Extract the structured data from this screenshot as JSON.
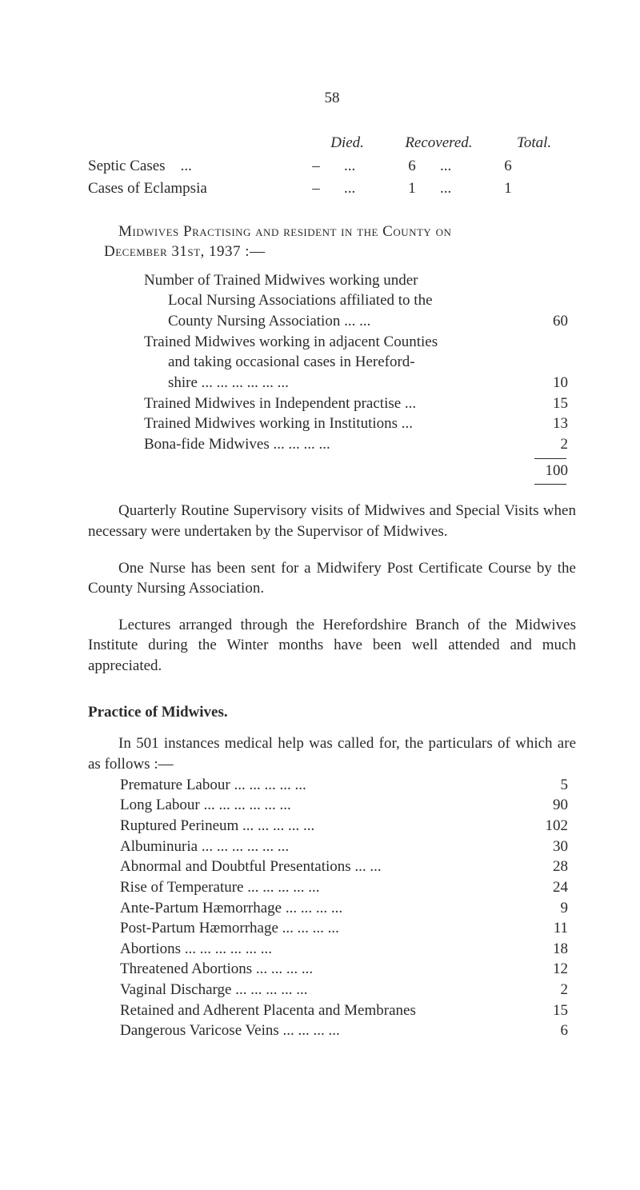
{
  "page_number": "58",
  "top_table": {
    "headers": {
      "died": "Died.",
      "recovered": "Recovered.",
      "total": "Total."
    },
    "rows": [
      {
        "label": "Septic Cases",
        "dots_a": "...",
        "died": "–",
        "dots_b": "...",
        "recovered": "6",
        "dots_c": "...",
        "total": "6"
      },
      {
        "label": "Cases of Eclampsia",
        "dots_a": "",
        "died": "–",
        "dots_b": "...",
        "recovered": "1",
        "dots_c": "...",
        "total": "1"
      }
    ]
  },
  "section1": {
    "heading_a": "Midwives Practising and resident in the County on",
    "heading_b": "December 31st, 1937 :—",
    "items": [
      {
        "lines": [
          "Number of Trained Midwives working under",
          "Local Nursing Associations affiliated to the",
          "County Nursing Association      ...   ..."
        ],
        "value": "60"
      },
      {
        "lines": [
          "Trained Midwives working in adjacent Counties",
          "and taking occasional cases in Hereford-",
          "shire ...     ...     ...     ...     ...     ..."
        ],
        "value": "10"
      },
      {
        "lines": [
          "Trained Midwives in Independent practise ..."
        ],
        "value": "15"
      },
      {
        "lines": [
          "Trained Midwives working in Institutions ..."
        ],
        "value": "13"
      },
      {
        "lines": [
          "Bona-fide Midwives       ...     ...     ...     ..."
        ],
        "value": "2"
      }
    ],
    "total": "100"
  },
  "para1": "Quarterly Routine Supervisory visits of Midwives and Special Visits when necessary were undertaken by the Supervisor of Midwives.",
  "para2": "One Nurse has been sent for a Midwifery Post Certificate Course by the County Nursing Association.",
  "para3": "Lectures arranged through the Herefordshire Branch of the Midwives Institute during the Winter months have been well attended and much appreciated.",
  "practice": {
    "heading": "Practice of Midwives.",
    "intro": "In 501 instances medical help was called for, the particulars of which are as follows :—",
    "items": [
      {
        "label": "Premature Labour   ...    ...    ...    ...    ...",
        "value": "5"
      },
      {
        "label": "Long Labour ...     ...     ...     ...     ...     ...",
        "value": "90"
      },
      {
        "label": "Ruptured Perineum ...    ...    ...    ...    ...",
        "value": "102"
      },
      {
        "label": "Albuminuria    ...    ...    ...    ...    ...    ...",
        "value": "30"
      },
      {
        "label": "Abnormal and Doubtful Presentations    ...    ...",
        "value": "28"
      },
      {
        "label": "Rise of Temperature ...    ...    ...    ...    ...",
        "value": "24"
      },
      {
        "label": "Ante-Partum Hæmorrhage ...    ...    ...    ...",
        "value": "9"
      },
      {
        "label": "Post-Partum Hæmorrhage  ...    ...    ...    ...",
        "value": "11"
      },
      {
        "label": "Abortions      ...    ...    ...    ...    ...    ...",
        "value": "18"
      },
      {
        "label": "Threatened Abortions        ...    ...    ...    ...",
        "value": "12"
      },
      {
        "label": "Vaginal Discharge     ...    ...    ...    ...    ...",
        "value": "2"
      },
      {
        "label": "Retained and Adherent Placenta and Membranes",
        "value": "15"
      },
      {
        "label": "Dangerous Varicose Veins  ...    ...    ...    ...",
        "value": "6"
      }
    ]
  }
}
